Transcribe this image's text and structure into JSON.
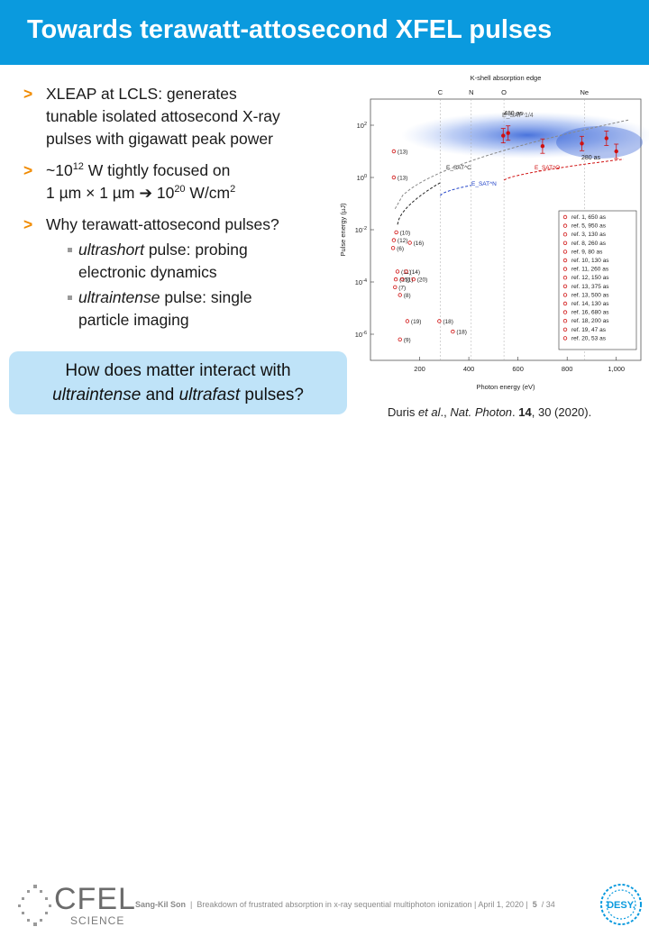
{
  "slide": {
    "title": "Towards terawatt-attosecond XFEL pulses",
    "bullets": [
      {
        "marker": ">",
        "lines": [
          "XLEAP at LCLS: generates",
          "tunable isolated attosecond X-ray",
          "pulses with gigawatt peak power"
        ]
      },
      {
        "marker": ">",
        "line1_pre": "~10",
        "line1_sup": "12",
        "line1_post": " W tightly focused on",
        "line2_pre": "1 µm × 1 µm ➔ 10",
        "line2_sup": "20",
        "line2_post": " W/cm",
        "line2_sup2": "2"
      },
      {
        "marker": ">",
        "text": "Why terawatt-attosecond pulses?"
      }
    ],
    "subbullets": [
      {
        "em": "ultrashort",
        "rest": " pulse: probing",
        "line2": "electronic dynamics"
      },
      {
        "em": "ultraintense",
        "rest": " pulse: single",
        "line2": "particle imaging"
      }
    ],
    "question": {
      "line1": "How does matter interact with",
      "em1": "ultraintense",
      "mid": " and ",
      "em2": "ultrafast",
      "end": " pulses?"
    },
    "caption": {
      "authors": "Duris ",
      "etal": "et al",
      "dot": "., ",
      "journal": "Nat. Photon",
      "post": ". ",
      "vol": "14",
      "rest": ", 30 (2020)."
    },
    "footer": {
      "author": "Sang-Kil Son",
      "text": "Breakdown of frustrated absorption in x-ray sequential multiphoton ionization",
      "date": "April 1, 2020",
      "page": "5",
      "total": "/ 34",
      "logo_text": "CFEL",
      "logo_sub": "SCIENCE",
      "desy": "DESY."
    },
    "colors": {
      "title_bar": "#0a9ade",
      "bullet_marker": "#f08a00",
      "question_box": "#bfe3f8"
    }
  },
  "chart_data": {
    "type": "scatter",
    "title": "K-shell absorption edge",
    "xlabel": "Photon energy (eV)",
    "ylabel": "Pulse energy (µJ)",
    "x_ticks": [
      "200",
      "400",
      "600",
      "800",
      "1,000"
    ],
    "y_ticks": [
      "10^2",
      "10^0",
      "10^-2",
      "10^-4",
      "10^-6"
    ],
    "edges": [
      {
        "label": "C",
        "x": 284
      },
      {
        "label": "N",
        "x": 410
      },
      {
        "label": "O",
        "x": 543
      },
      {
        "label": "Ne",
        "x": 870
      }
    ],
    "curve_labels": [
      "E_SAT^1/4",
      "E_SAT^C",
      "E_SAT^N",
      "E_SAT^O",
      "480 as",
      "280 as"
    ],
    "points": [
      {
        "label": "(13)",
        "x": 95,
        "logy": 1.0
      },
      {
        "label": "(13)",
        "x": 95,
        "logy": 0.0
      },
      {
        "label": "(10)",
        "x": 105,
        "logy": -2.1
      },
      {
        "label": "(12)",
        "x": 95,
        "logy": -2.4
      },
      {
        "label": "(6)",
        "x": 92,
        "logy": -2.7
      },
      {
        "label": "(16)",
        "x": 160,
        "logy": -2.5
      },
      {
        "label": "(11)",
        "x": 110,
        "logy": -3.6
      },
      {
        "label": "(14)",
        "x": 145,
        "logy": -3.6
      },
      {
        "label": "(15)",
        "x": 103,
        "logy": -3.9
      },
      {
        "label": "(1)",
        "x": 130,
        "logy": -3.9
      },
      {
        "label": "(20)",
        "x": 175,
        "logy": -3.9
      },
      {
        "label": "(7)",
        "x": 100,
        "logy": -4.2
      },
      {
        "label": "(8)",
        "x": 120,
        "logy": -4.5
      },
      {
        "label": "(19)",
        "x": 150,
        "logy": -5.5
      },
      {
        "label": "(18)",
        "x": 280,
        "logy": -5.5
      },
      {
        "label": "(18)",
        "x": 335,
        "logy": -5.9
      },
      {
        "label": "(9)",
        "x": 120,
        "logy": -6.2
      }
    ],
    "legend": [
      "ref. 1, 650 as",
      "ref. 5, 950 as",
      "ref. 3, 130 as",
      "ref. 8, 260 as",
      "ref. 9, 80 as",
      "ref. 10, 130 as",
      "ref. 11, 260 as",
      "ref. 12, 150 as",
      "ref. 13, 375 as",
      "ref. 13, 500 as",
      "ref. 14, 130 as",
      "ref. 16, 680 as",
      "ref. 18, 200 as",
      "ref. 19, 47 as",
      "ref. 20, 53 as"
    ],
    "xlim": [
      0,
      1100
    ],
    "ylim_log10": [
      -7,
      3
    ]
  }
}
